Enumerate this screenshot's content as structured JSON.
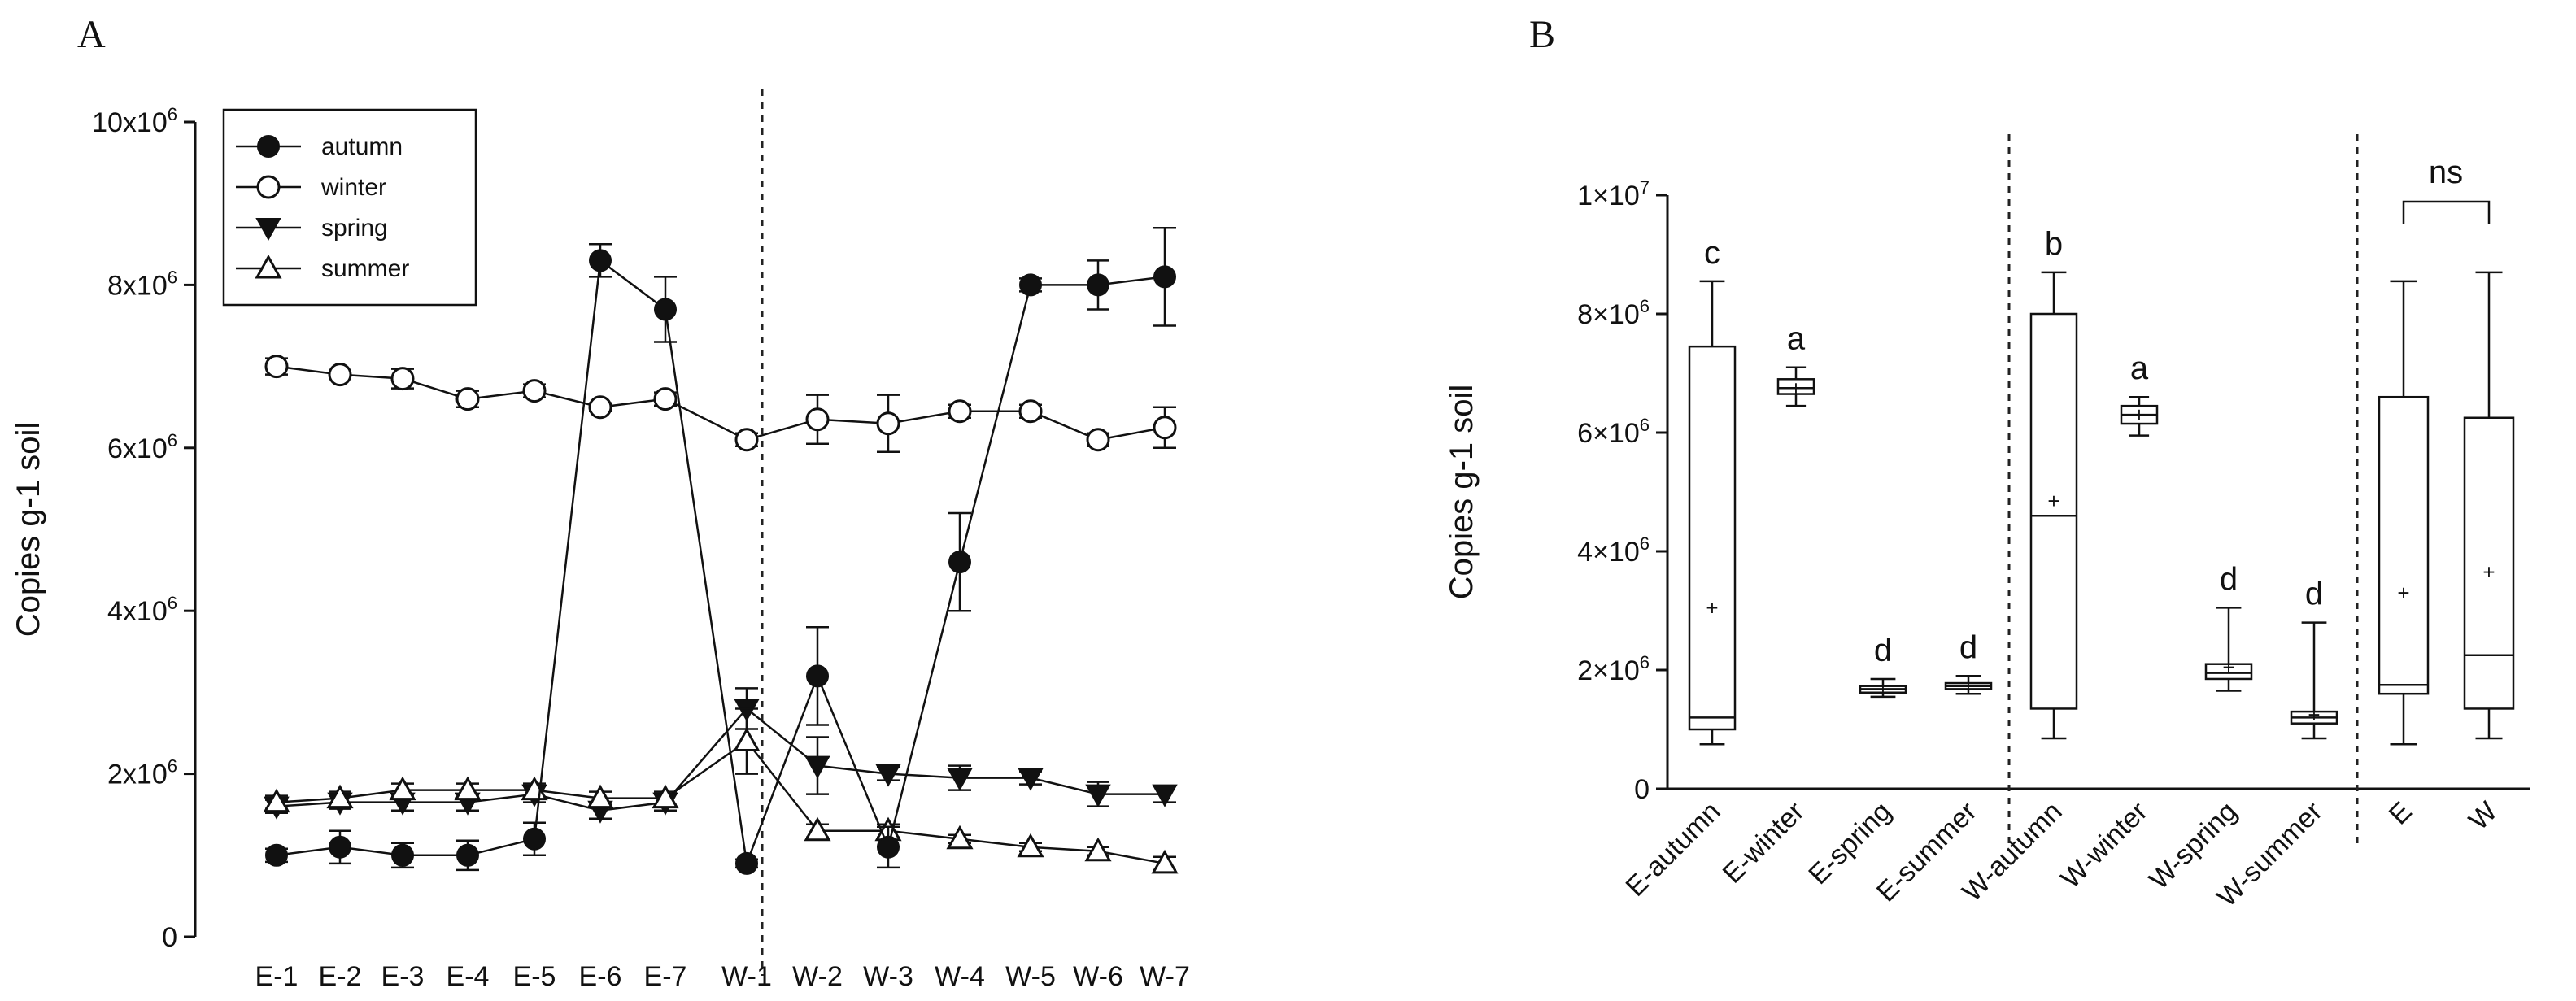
{
  "chart_data": [
    {
      "panel": "A",
      "type": "line",
      "ylabel": "Copies g-1 soil",
      "ylim": [
        0,
        10000000
      ],
      "yticks": [
        {
          "value": 0,
          "label": "0"
        },
        {
          "value": 2000000,
          "label": "2x10",
          "sup": "6"
        },
        {
          "value": 4000000,
          "label": "4x10",
          "sup": "6"
        },
        {
          "value": 6000000,
          "label": "6x10",
          "sup": "6"
        },
        {
          "value": 8000000,
          "label": "8x10",
          "sup": "6"
        },
        {
          "value": 10000000,
          "label": "10x10",
          "sup": "6"
        }
      ],
      "categories": [
        "E-1",
        "E-2",
        "E-3",
        "E-4",
        "E-5",
        "E-6",
        "E-7",
        "W-1",
        "W-2",
        "W-3",
        "W-4",
        "W-5",
        "W-6",
        "W-7"
      ],
      "legend": [
        "autumn",
        "winter",
        "spring",
        "summer"
      ],
      "series": [
        {
          "name": "autumn",
          "marker": "circle-filled",
          "values": [
            1000000,
            1100000,
            1000000,
            1000000,
            1200000,
            8300000,
            7700000,
            900000,
            3200000,
            1100000,
            4600000,
            8000000,
            8000000,
            8100000
          ],
          "errors": [
            80000,
            200000,
            150000,
            180000,
            200000,
            200000,
            400000,
            50000,
            600000,
            250000,
            600000,
            80000,
            300000,
            600000
          ]
        },
        {
          "name": "winter",
          "marker": "circle-open",
          "values": [
            7000000,
            6900000,
            6850000,
            6600000,
            6700000,
            6500000,
            6600000,
            6100000,
            6350000,
            6300000,
            6450000,
            6450000,
            6100000,
            6250000
          ],
          "errors": [
            100000,
            50000,
            120000,
            100000,
            80000,
            50000,
            80000,
            80000,
            300000,
            350000,
            80000,
            80000,
            80000,
            250000
          ]
        },
        {
          "name": "spring",
          "marker": "triangle-down-filled",
          "values": [
            1600000,
            1650000,
            1650000,
            1650000,
            1750000,
            1550000,
            1650000,
            2800000,
            2100000,
            2000000,
            1950000,
            1950000,
            1750000,
            1750000
          ],
          "errors": [
            80000,
            80000,
            100000,
            100000,
            100000,
            100000,
            100000,
            250000,
            350000,
            80000,
            150000,
            80000,
            150000,
            100000
          ]
        },
        {
          "name": "summer",
          "marker": "triangle-up-open",
          "values": [
            1650000,
            1700000,
            1800000,
            1800000,
            1800000,
            1700000,
            1700000,
            2400000,
            1300000,
            1300000,
            1200000,
            1100000,
            1050000,
            900000
          ],
          "errors": [
            80000,
            80000,
            80000,
            80000,
            80000,
            80000,
            80000,
            400000,
            80000,
            80000,
            50000,
            50000,
            50000,
            80000
          ]
        }
      ]
    },
    {
      "panel": "B",
      "type": "box",
      "ylabel": "Copies g-1 soil",
      "ylim": [
        0,
        10000000
      ],
      "yticks": [
        {
          "value": 0,
          "label": "0"
        },
        {
          "value": 2000000,
          "label": "2×10",
          "sup": "6"
        },
        {
          "value": 4000000,
          "label": "4×10",
          "sup": "6"
        },
        {
          "value": 6000000,
          "label": "6×10",
          "sup": "6"
        },
        {
          "value": 8000000,
          "label": "8×10",
          "sup": "6"
        },
        {
          "value": 10000000,
          "label": "1×10",
          "sup": "7"
        }
      ],
      "categories": [
        "E-autumn",
        "E-winter",
        "E-spring",
        "E-summer",
        "W-autumn",
        "W-winter",
        "W-spring",
        "W-summer",
        "E",
        "W"
      ],
      "boxes": [
        {
          "name": "E-autumn",
          "min": 750000,
          "q1": 1000000,
          "median": 1200000,
          "q3": 7450000,
          "max": 8550000,
          "mean": 3050000,
          "letter": "c"
        },
        {
          "name": "E-winter",
          "min": 6450000,
          "q1": 6650000,
          "median": 6750000,
          "q3": 6900000,
          "max": 7100000,
          "mean": 6750000,
          "letter": "a"
        },
        {
          "name": "E-spring",
          "min": 1550000,
          "q1": 1620000,
          "median": 1680000,
          "q3": 1730000,
          "max": 1850000,
          "mean": 1680000,
          "letter": "d"
        },
        {
          "name": "E-summer",
          "min": 1600000,
          "q1": 1680000,
          "median": 1730000,
          "q3": 1780000,
          "max": 1900000,
          "mean": 1730000,
          "letter": "d"
        },
        {
          "name": "W-autumn",
          "min": 850000,
          "q1": 1350000,
          "median": 4600000,
          "q3": 8000000,
          "max": 8700000,
          "mean": 4850000,
          "letter": "b"
        },
        {
          "name": "W-winter",
          "min": 5950000,
          "q1": 6150000,
          "median": 6300000,
          "q3": 6450000,
          "max": 6600000,
          "mean": 6300000,
          "letter": "a"
        },
        {
          "name": "W-spring",
          "min": 1650000,
          "q1": 1850000,
          "median": 1950000,
          "q3": 2100000,
          "max": 3050000,
          "mean": 2050000,
          "letter": "d"
        },
        {
          "name": "W-summer",
          "min": 850000,
          "q1": 1100000,
          "median": 1200000,
          "q3": 1300000,
          "max": 2800000,
          "mean": 1250000,
          "letter": "d"
        },
        {
          "name": "E",
          "min": 750000,
          "q1": 1600000,
          "median": 1750000,
          "q3": 6600000,
          "max": 8550000,
          "mean": 3300000,
          "letter": ""
        },
        {
          "name": "W",
          "min": 850000,
          "q1": 1350000,
          "median": 2250000,
          "q3": 6250000,
          "max": 8700000,
          "mean": 3650000,
          "letter": ""
        }
      ],
      "annotation": "ns"
    }
  ]
}
